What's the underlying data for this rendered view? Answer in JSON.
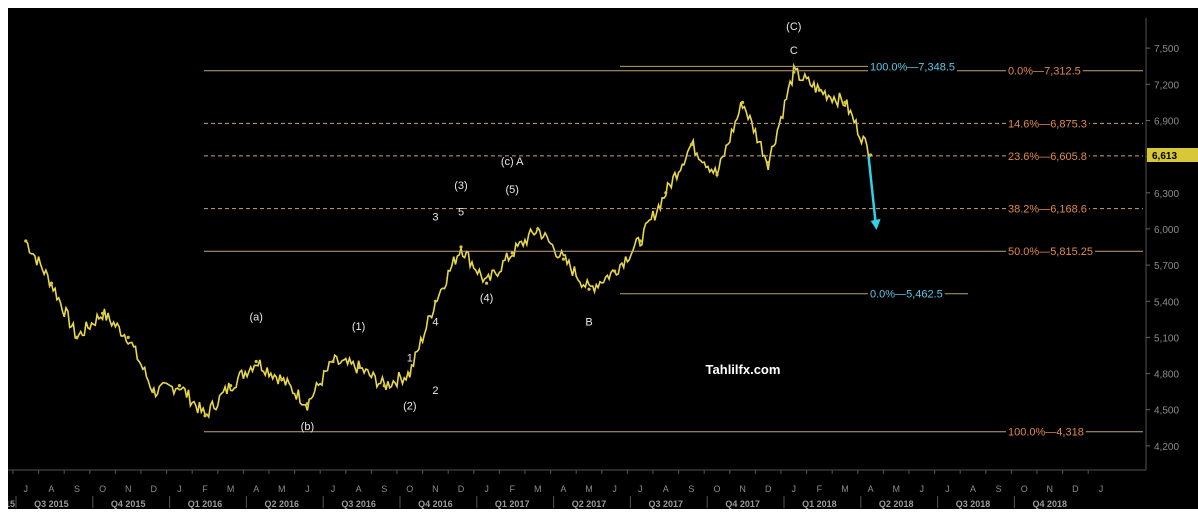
{
  "chart_data": {
    "type": "line",
    "title": "",
    "xlabel": "",
    "ylabel": "",
    "watermark": "Tahlilfx.com",
    "ylim": [
      4000,
      7750
    ],
    "y_ticks": [
      4200,
      4500,
      4800,
      5100,
      5400,
      5700,
      6000,
      6300,
      6600,
      6900,
      7200,
      7500
    ],
    "y_tick_labels": [
      "4,200",
      "4,500",
      "4,800",
      "5,100",
      "5,400",
      "5,700",
      "6,000",
      "6,300",
      "6,600",
      "6,900",
      "7,200",
      "7,500"
    ],
    "last_price_label": "6,613",
    "x_month_labels": [
      "J",
      "A",
      "S",
      "O",
      "N",
      "D",
      "J",
      "F",
      "M",
      "A",
      "M",
      "J",
      "J",
      "A",
      "S",
      "O",
      "N",
      "D",
      "J",
      "F",
      "M",
      "A",
      "M",
      "J",
      "J",
      "A",
      "S",
      "O",
      "N",
      "D",
      "J",
      "F",
      "M",
      "A",
      "M",
      "J",
      "J",
      "A",
      "S",
      "O",
      "N",
      "D",
      "J"
    ],
    "x_quarter_labels": [
      "15",
      "Q3 2015",
      "Q4 2015",
      "Q1 2016",
      "Q2 2016",
      "Q3 2016",
      "Q4 2016",
      "Q1 2017",
      "Q2 2017",
      "Q3 2017",
      "Q4 2017",
      "Q1 2018",
      "Q2 2018",
      "Q3 2018",
      "Q4 2018"
    ],
    "series": [
      {
        "color": "#e8d84a",
        "x": [
          "Jul 2015",
          "Aug 2015",
          "Sep 2015",
          "Oct 2015",
          "Nov 2015",
          "Dec 2015",
          "Jan 2016",
          "Feb 2016",
          "Mar 2016",
          "Apr 2016",
          "May 2016",
          "Jun 2016",
          "Jul 2016",
          "Aug 2016",
          "Sep 2016",
          "Oct 2016",
          "Nov 2016",
          "Dec 2016",
          "Jan 2017",
          "Feb 2017",
          "Mar 2017",
          "Apr 2017",
          "May 2017",
          "Jun 2017",
          "Jul 2017",
          "Aug 2017",
          "Sep 2017",
          "Oct 2017",
          "Nov 2017",
          "Dec 2017",
          "Jan 2018",
          "Feb 2018",
          "Mar 2018",
          "Apr 2018"
        ],
        "y": [
          5900,
          5550,
          5100,
          5300,
          5100,
          4650,
          4700,
          4450,
          4700,
          4900,
          4750,
          4550,
          4900,
          4850,
          4700,
          4800,
          5400,
          5850,
          5550,
          5800,
          6000,
          5750,
          5500,
          5650,
          5900,
          6300,
          6700,
          6450,
          7050,
          6550,
          7300,
          7150,
          7050,
          6613
        ]
      }
    ],
    "fibonacci_levels": [
      {
        "label": "0.0%—7,312.5",
        "value": 7312.5,
        "color": "#e0894a"
      },
      {
        "label": "14.6%—6,875.3",
        "value": 6875.3,
        "color": "#e0894a"
      },
      {
        "label": "23.6%—6,605.8",
        "value": 6605.8,
        "color": "#e0894a"
      },
      {
        "label": "38.2%—6,168.6",
        "value": 6168.6,
        "color": "#e0894a"
      },
      {
        "label": "50.0%—5,815.25",
        "value": 5815.25,
        "color": "#e0894a"
      },
      {
        "label": "100.0%—4,318",
        "value": 4318,
        "color": "#e0894a"
      },
      {
        "label": "100.0%—7,348.5",
        "value": 7348.5,
        "color": "#5ac8e8"
      },
      {
        "label": "0.0%—5,462.5",
        "value": 5462.5,
        "color": "#5ac8e8"
      }
    ],
    "wave_labels": [
      {
        "label": "(C)",
        "date": "Jan 2018",
        "value": 7650
      },
      {
        "label": "C",
        "date": "Jan 2018",
        "value": 7450
      },
      {
        "label": "(c) A",
        "date": "Feb 2017",
        "value": 6530
      },
      {
        "label": "(5)",
        "date": "Feb 2017",
        "value": 6300
      },
      {
        "label": "(3)",
        "date": "Dec 2016",
        "value": 6330
      },
      {
        "label": "3",
        "date": "Nov 2016",
        "value": 6070
      },
      {
        "label": "5",
        "date": "Dec 2016",
        "value": 6110
      },
      {
        "label": "4",
        "date": "Nov 2016",
        "value": 5200
      },
      {
        "label": "(4)",
        "date": "Jan 2017",
        "value": 5400
      },
      {
        "label": "B",
        "date": "May 2017",
        "value": 5200
      },
      {
        "label": "(a)",
        "date": "Apr 2016",
        "value": 5240
      },
      {
        "label": "(1)",
        "date": "Aug 2016",
        "value": 5160
      },
      {
        "label": "1",
        "date": "Oct 2016",
        "value": 4900
      },
      {
        "label": "(b)",
        "date": "Jun 2016",
        "value": 4330
      },
      {
        "label": "(2)",
        "date": "Oct 2016",
        "value": 4500
      },
      {
        "label": "2",
        "date": "Nov 2016",
        "value": 4630
      }
    ],
    "annotation": {
      "type": "arrow-down",
      "color": "#2fd3e6",
      "from_value": 6600,
      "to_value": 6000
    },
    "grid": false,
    "legend": "none"
  }
}
